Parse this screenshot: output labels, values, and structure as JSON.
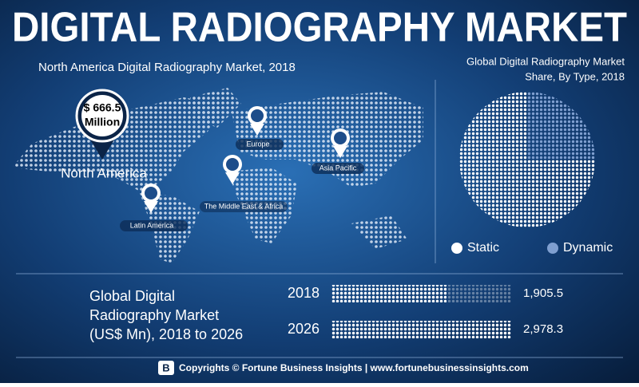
{
  "title": "DIGITAL RADIOGRAPHY MARKET",
  "map": {
    "title": "North America Digital Radiography Market, 2018",
    "highlight": {
      "amount": "$ 666.5",
      "unit": "Million",
      "region": "North America"
    },
    "regions": [
      "Europe",
      "Asia Pacific",
      "The Middle East & Africa",
      "Latin America"
    ]
  },
  "chart_data": [
    {
      "type": "pie",
      "title": [
        "Global Digital Radiography Market",
        "Share, By Type, 2018"
      ],
      "categories": [
        "Static",
        "Dynamic"
      ],
      "values": [
        75,
        25
      ],
      "colors": [
        "#ffffff",
        "#7f9fd0"
      ]
    },
    {
      "type": "bar",
      "orientation": "horizontal",
      "title": [
        "Global Digital",
        "Radiography Market",
        "(US$ Mn), 2018 to 2026"
      ],
      "categories": [
        "2018",
        "2026"
      ],
      "values": [
        1905.5,
        2978.3
      ],
      "value_labels": [
        "1,905.5",
        "2,978.3"
      ],
      "color": "#ffffff"
    }
  ],
  "footer": "Copyrights © Fortune Business Insights | www.fortunebusinessinsights.com"
}
